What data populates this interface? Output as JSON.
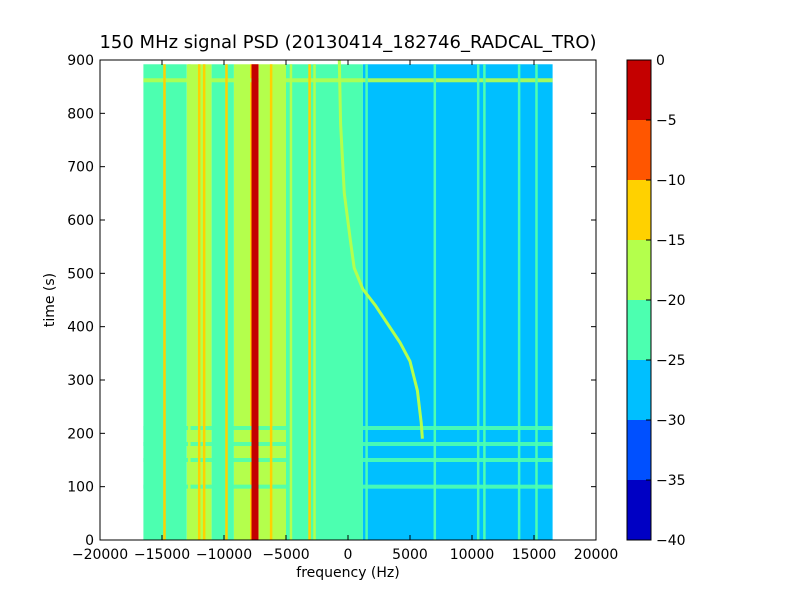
{
  "chart_data": {
    "type": "heatmap",
    "title": "150 MHz signal PSD (20130414_182746_RADCAL_TRO)",
    "xlabel": "frequency (Hz)",
    "ylabel": "time (s)",
    "xlim": [
      -20000,
      20000
    ],
    "ylim": [
      0,
      900
    ],
    "x_ticks": [
      -20000,
      -15000,
      -10000,
      -5000,
      0,
      5000,
      10000,
      15000,
      20000
    ],
    "y_ticks": [
      0,
      100,
      200,
      300,
      400,
      500,
      600,
      700,
      800,
      900
    ],
    "data_extent": {
      "x": [
        -16500,
        16500
      ],
      "y": [
        0,
        892
      ]
    },
    "colorbar": {
      "levels": [
        -40,
        -35,
        -30,
        -25,
        -20,
        -15,
        -10,
        -5,
        0
      ],
      "colors": [
        "#0000c4",
        "#0050ff",
        "#00bfff",
        "#4cffb0",
        "#b4ff4c",
        "#ffd100",
        "#ff5600",
        "#c40000"
      ]
    },
    "background_bands": [
      {
        "from": -16500,
        "to": -13000,
        "level": -22.5
      },
      {
        "from": -13000,
        "to": -11000,
        "level": -17.5
      },
      {
        "from": -11000,
        "to": -9200,
        "level": -22.5
      },
      {
        "from": -9200,
        "to": -7900,
        "level": -17.5
      },
      {
        "from": -7900,
        "to": -7200,
        "level": -12.5
      },
      {
        "from": -7200,
        "to": -5000,
        "level": -17.5
      },
      {
        "from": -5000,
        "to": 1200,
        "level": -22.5
      },
      {
        "from": 1200,
        "to": 16500,
        "level": -27.5
      }
    ],
    "vertical_lines": [
      {
        "x": -14800,
        "level": -12.5
      },
      {
        "x": -12800,
        "level": -17.5
      },
      {
        "x": -12000,
        "level": -12.5
      },
      {
        "x": -11600,
        "level": -12.5
      },
      {
        "x": -9800,
        "level": -12.5
      },
      {
        "x": -7500,
        "level": -2.5
      },
      {
        "x": -6200,
        "level": -12.5
      },
      {
        "x": -4600,
        "level": -17.5
      },
      {
        "x": -3100,
        "level": -12.5
      },
      {
        "x": -2700,
        "level": -17.5
      },
      {
        "x": 1500,
        "level": -22.5
      },
      {
        "x": 7000,
        "level": -22.5
      },
      {
        "x": 10500,
        "level": -22.5
      },
      {
        "x": 11000,
        "level": -22.5
      },
      {
        "x": 13800,
        "level": -22.5
      },
      {
        "x": 15200,
        "level": -22.5
      }
    ],
    "horizontal_lines": [
      {
        "y": 862,
        "level": -17.5
      },
      {
        "y": 210,
        "level": -22.5
      },
      {
        "y": 180,
        "level": -22.5
      },
      {
        "y": 150,
        "level": -22.5
      },
      {
        "y": 100,
        "level": -22.5
      }
    ],
    "signal_track": {
      "level": -17.5,
      "points": [
        [
          -700,
          900
        ],
        [
          -600,
          780
        ],
        [
          -300,
          650
        ],
        [
          200,
          560
        ],
        [
          500,
          510
        ],
        [
          1200,
          470
        ],
        [
          2200,
          440
        ],
        [
          3200,
          405
        ],
        [
          4200,
          370
        ],
        [
          5000,
          335
        ],
        [
          5600,
          280
        ],
        [
          5900,
          220
        ],
        [
          6000,
          190
        ]
      ]
    }
  }
}
